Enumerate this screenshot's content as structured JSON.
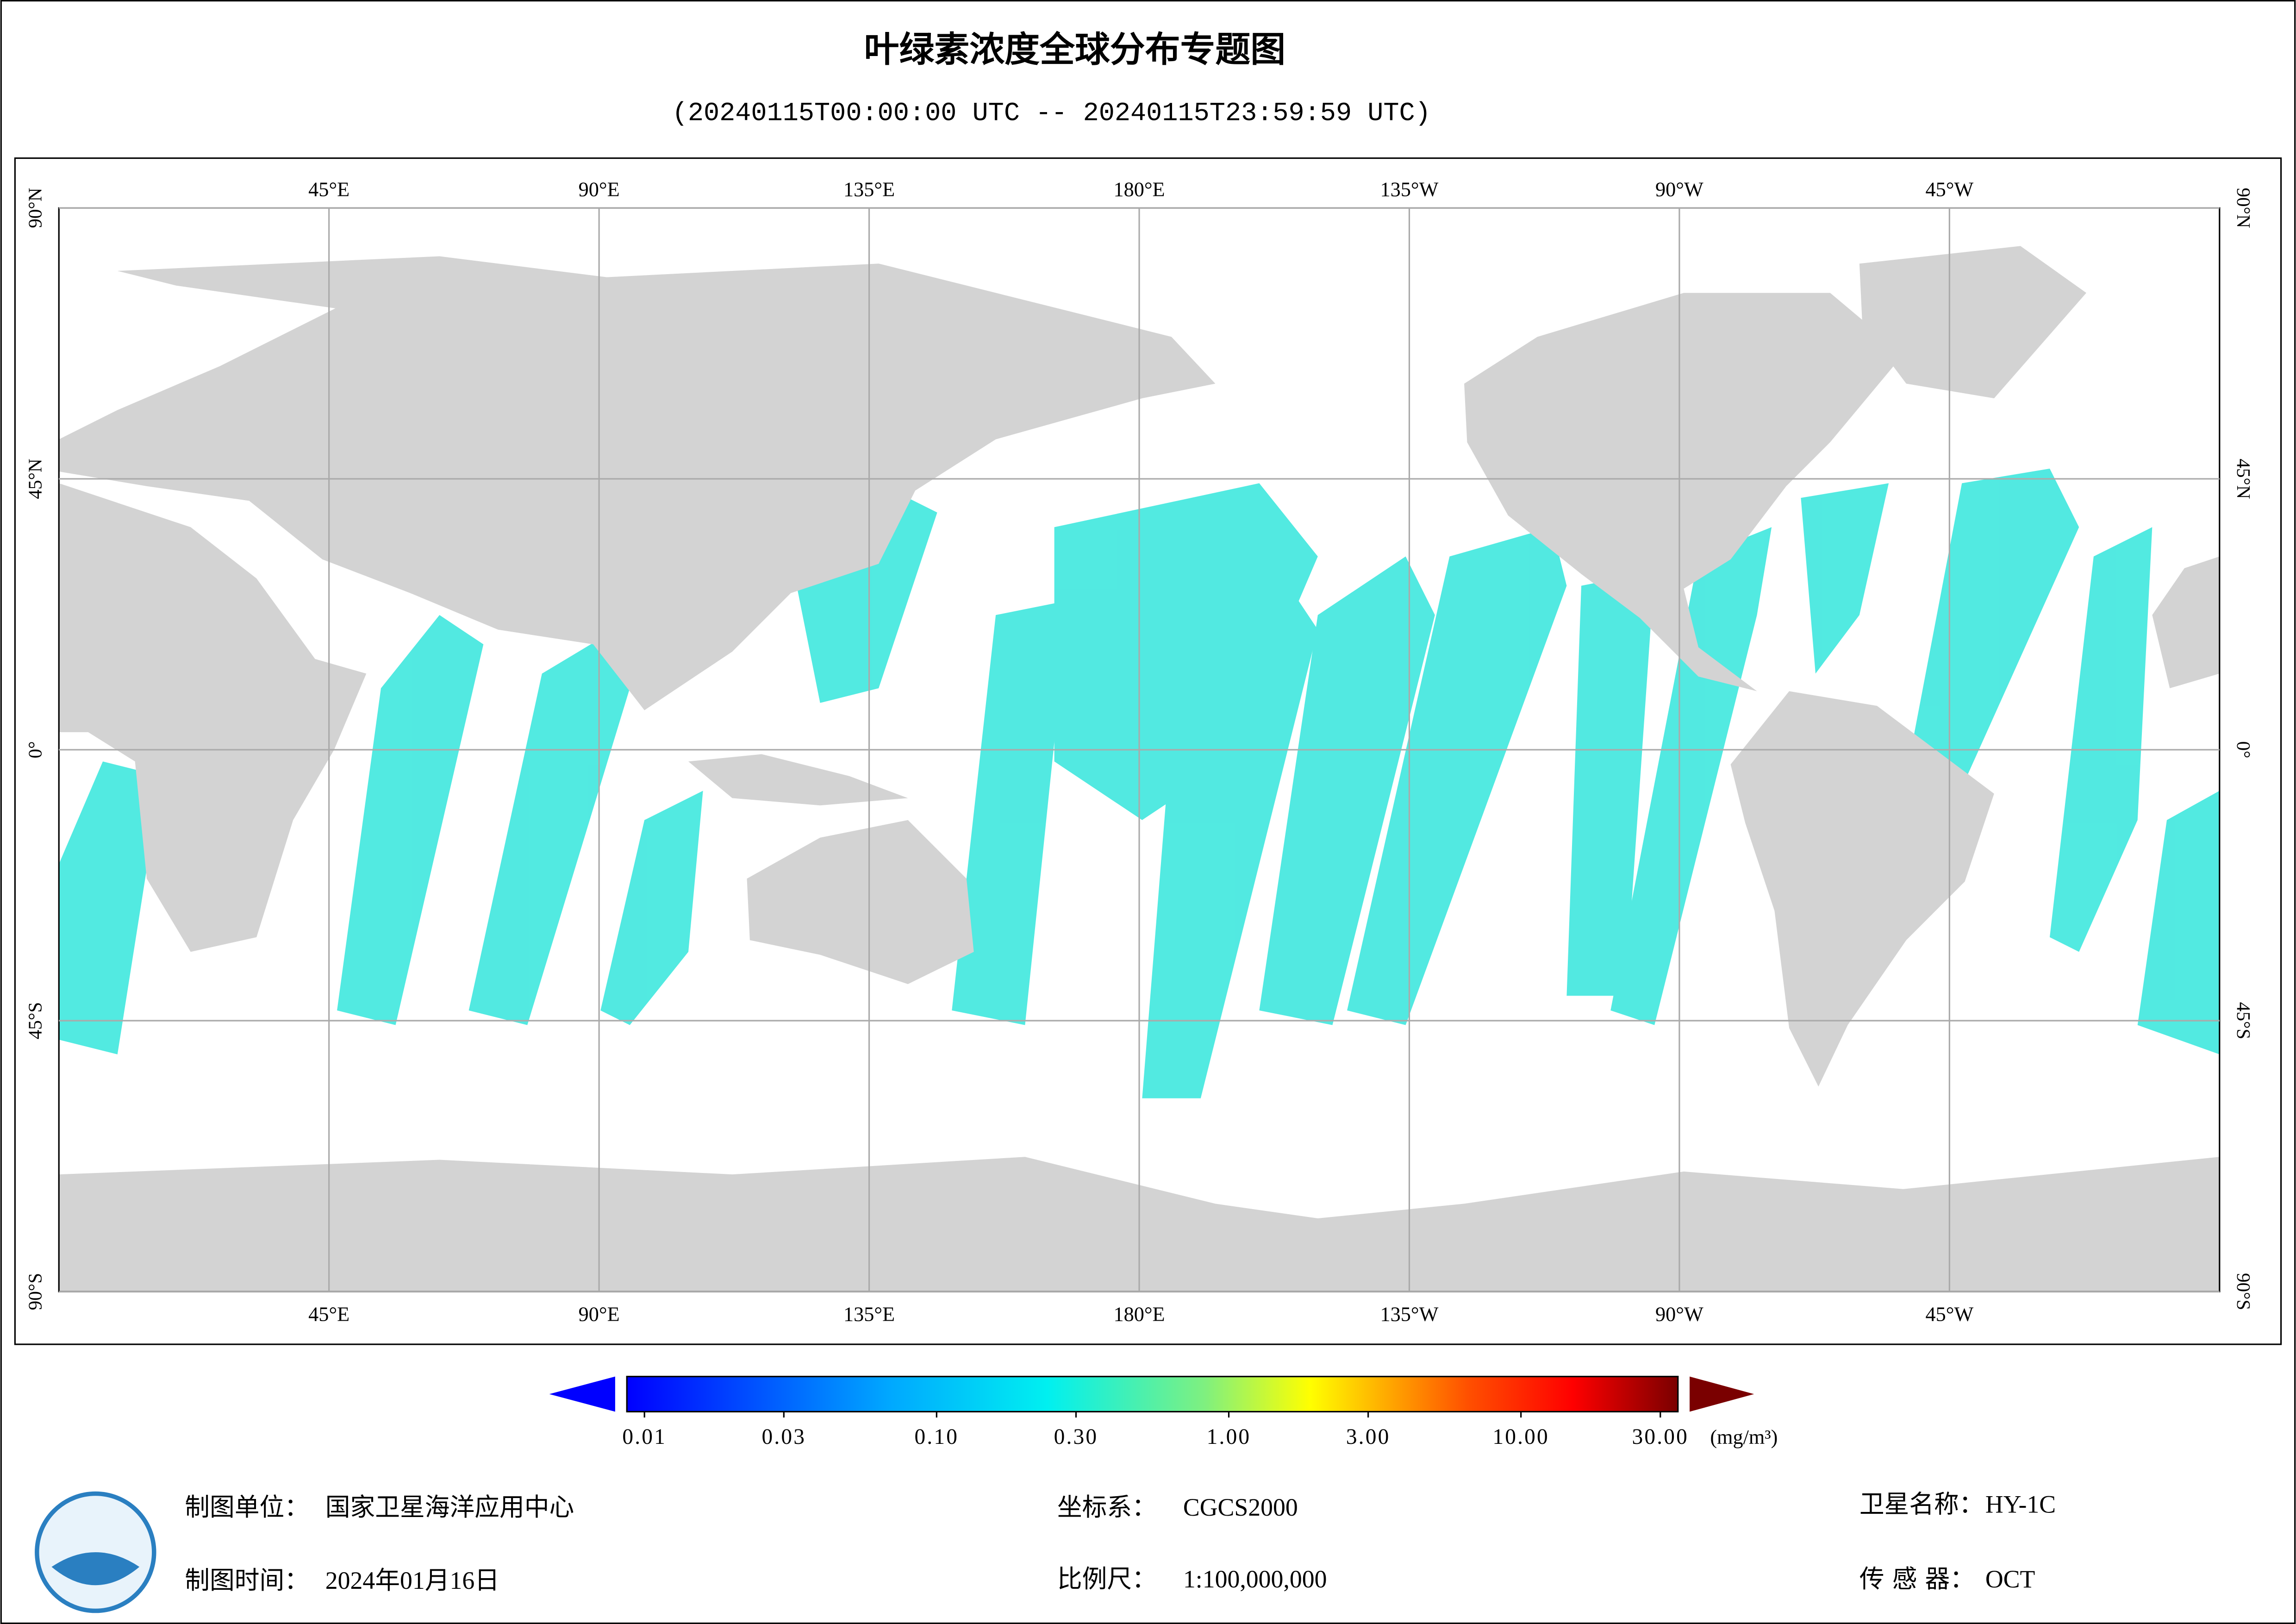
{
  "header": {
    "title": "叶绿素浓度全球分布专题图",
    "subtitle": "(20240115T00:00:00 UTC -- 20240115T23:59:59 UTC)"
  },
  "map": {
    "lonlim": [
      0,
      360
    ],
    "latlim": [
      90,
      -90
    ],
    "lonticks": [
      {
        "value": 45,
        "label": "45°E"
      },
      {
        "value": 90,
        "label": "90°E"
      },
      {
        "value": 135,
        "label": "135°E"
      },
      {
        "value": 180,
        "label": "180°E"
      },
      {
        "value": 225,
        "label": "135°W"
      },
      {
        "value": 270,
        "label": "90°W"
      },
      {
        "value": 315,
        "label": "45°W"
      }
    ],
    "latticks": [
      {
        "value": 90,
        "label": "90°N"
      },
      {
        "value": 45,
        "label": "45°N"
      },
      {
        "value": 0,
        "label": "0°"
      },
      {
        "value": -45,
        "label": "45°S"
      },
      {
        "value": -90,
        "label": "90°S"
      }
    ]
  },
  "colorbar": {
    "log": true,
    "range": [
      0.01,
      30
    ],
    "unit": "(mg/m³)",
    "ticks": [
      0.01,
      0.03,
      {
        "value": 0.1,
        "label": "0.10"
      },
      {
        "value": 0.3,
        "label": "0.30"
      },
      {
        "value": 1,
        "label": "1.00"
      },
      {
        "value": 3,
        "label": "3.00"
      },
      {
        "value": 10,
        "label": "10.00"
      },
      {
        "value": 30,
        "label": "30.00"
      }
    ]
  },
  "footer": {
    "items": [
      {
        "label": "制图单位：",
        "value": "国家卫星海洋应用中心"
      },
      {
        "label": "坐标系：",
        "value": "CGCS2000"
      },
      {
        "label": "卫星名称：",
        "value": "HY-1C"
      },
      {
        "label": "制图时间：",
        "value": "2024年01月16日"
      },
      {
        "label": "比例尺：",
        "value": "1:100,000,000"
      },
      {
        "label": "传 感 器：",
        "value": "OCT"
      }
    ]
  }
}
